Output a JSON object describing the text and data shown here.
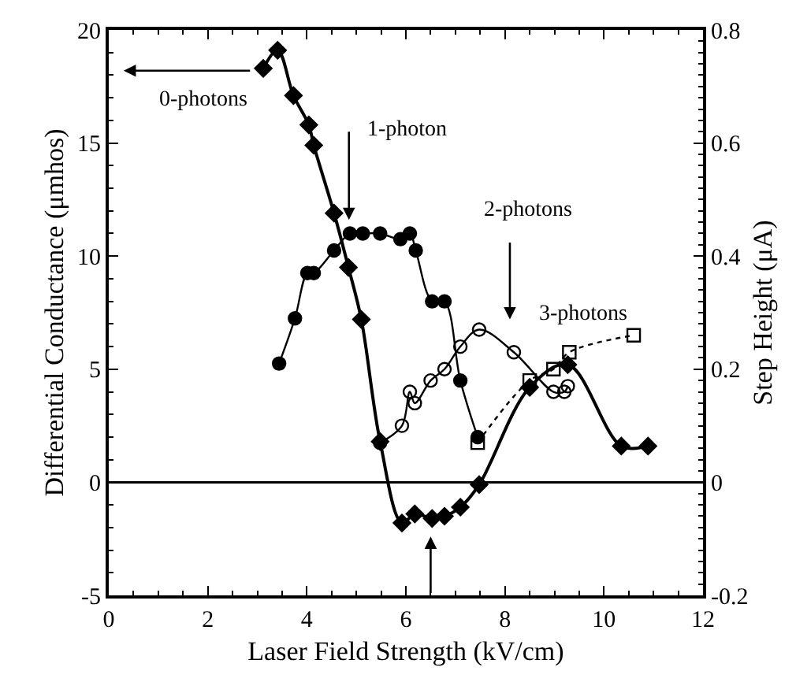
{
  "chart_data": {
    "type": "line",
    "xlabel": "Laser Field Strength (kV/cm)",
    "ylabel": "Differential Conductance (μmhos)",
    "y2label": "Step Height (μA)",
    "xlim": [
      0,
      12
    ],
    "xticks": [
      0,
      2,
      4,
      6,
      8,
      10,
      12
    ],
    "ylim": [
      -5,
      20
    ],
    "yticks": [
      -5,
      0,
      5,
      10,
      15,
      20
    ],
    "y2lim": [
      -0.2,
      0.8
    ],
    "y2ticks": [
      -0.2,
      0,
      0.2,
      0.4,
      0.6,
      0.8
    ],
    "ref_lines": [
      {
        "axis": "y",
        "value": 0,
        "color": "#000000"
      }
    ],
    "annotations": [
      "0-photons",
      "1-photon",
      "2-photons",
      "3-photons"
    ],
    "series": [
      {
        "color": "#000000",
        "marker": "diamond",
        "line_style": "solid",
        "x": [
          3.12,
          3.41,
          3.73,
          4.04,
          4.14,
          4.55,
          4.84,
          5.1,
          5.48,
          5.92,
          6.18,
          6.53,
          6.78,
          7.1,
          7.48,
          8.5,
          9.27,
          10.35,
          10.89
        ],
        "values": [
          18.3,
          19.1,
          17.1,
          15.8,
          14.9,
          11.9,
          9.5,
          7.2,
          1.8,
          -1.8,
          -1.4,
          -1.6,
          -1.5,
          -1.1,
          -0.1,
          4.2,
          5.2,
          1.6,
          1.6
        ]
      },
      {
        "color": "#000000",
        "marker": "circle",
        "line_style": "solid",
        "axis": "y2",
        "x": [
          3.44,
          3.76,
          4.01,
          4.14,
          4.55,
          4.87,
          5.13,
          5.48,
          5.89,
          6.08,
          6.2,
          6.53,
          6.78,
          7.1,
          7.45
        ],
        "values": [
          0.21,
          0.29,
          0.37,
          0.37,
          0.41,
          0.44,
          0.44,
          0.44,
          0.43,
          0.44,
          0.41,
          0.32,
          0.32,
          0.18,
          0.08
        ]
      },
      {
        "color": "#000000",
        "marker": "circle-open",
        "line_style": "solid",
        "axis": "y2",
        "x": [
          5.48,
          5.92,
          6.08,
          6.18,
          6.5,
          6.78,
          7.1,
          7.48,
          8.18,
          8.98,
          9.2,
          9.27
        ],
        "values": [
          0.07,
          0.1,
          0.16,
          0.14,
          0.18,
          0.2,
          0.24,
          0.27,
          0.23,
          0.16,
          0.16,
          0.17
        ]
      },
      {
        "color": "#000000",
        "marker": "square-open",
        "line_style": "dotted",
        "axis": "y2",
        "x": [
          7.45,
          8.5,
          8.98,
          9.3,
          10.6
        ],
        "values": [
          0.07,
          0.18,
          0.2,
          0.23,
          0.26
        ]
      }
    ]
  }
}
